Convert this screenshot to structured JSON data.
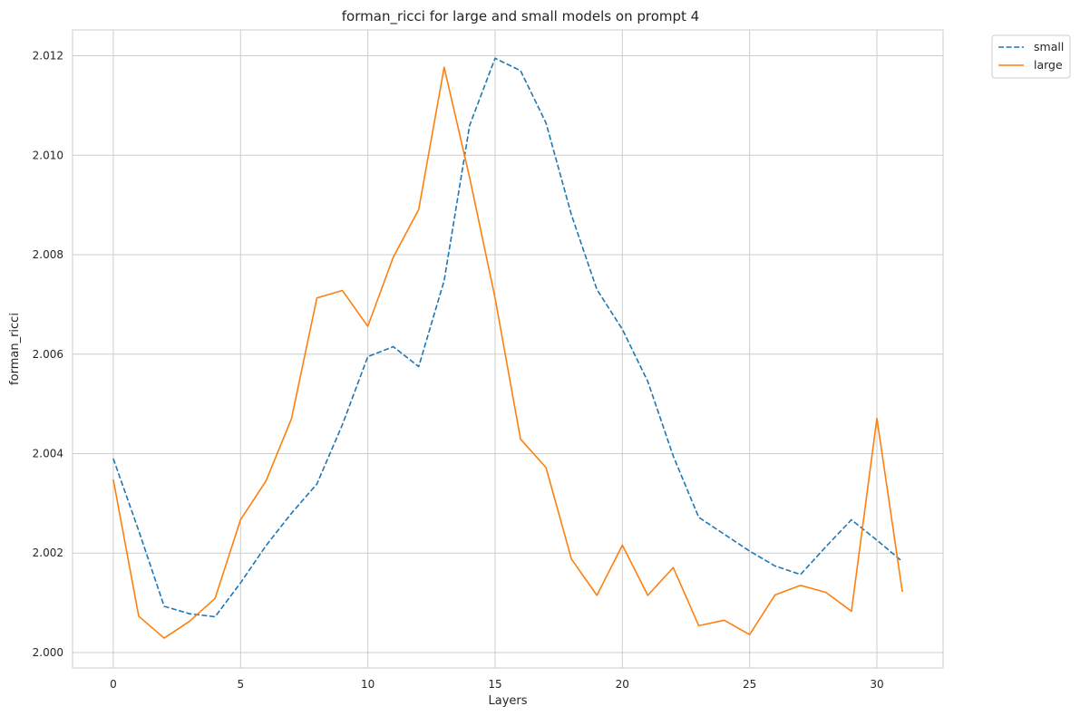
{
  "chart_data": {
    "type": "line",
    "title": "forman_ricci for large and small models on prompt 4",
    "xlabel": "Layers",
    "ylabel": "forman_ricci",
    "xlim": [
      -1.6,
      32.6
    ],
    "ylim": [
      1.99969,
      2.01252
    ],
    "xticks": [
      0,
      5,
      10,
      15,
      20,
      25,
      30
    ],
    "yticks": [
      2.0,
      2.002,
      2.004,
      2.006,
      2.008,
      2.01,
      2.012
    ],
    "ytick_labels": [
      "2.000",
      "2.002",
      "2.004",
      "2.006",
      "2.008",
      "2.010",
      "2.012"
    ],
    "grid": true,
    "legend": {
      "placement": "outside-top-right"
    },
    "x": [
      0,
      1,
      2,
      3,
      4,
      5,
      6,
      7,
      8,
      9,
      10,
      11,
      12,
      13,
      14,
      15,
      16,
      17,
      18,
      19,
      20,
      21,
      22,
      23,
      24,
      25,
      26,
      27,
      28,
      29,
      30,
      31
    ],
    "series": [
      {
        "name": "small",
        "color": "#1f77b4",
        "style": "dashed",
        "values": [
          2.0039,
          2.00245,
          2.00093,
          2.00078,
          2.00072,
          2.0014,
          2.00215,
          2.0028,
          2.00339,
          2.00458,
          2.00595,
          2.00615,
          2.00575,
          2.00748,
          2.0106,
          2.01195,
          2.0117,
          2.01065,
          2.0088,
          2.0073,
          2.0065,
          2.00545,
          2.00395,
          2.00272,
          2.00238,
          2.00204,
          2.00174,
          2.00157,
          2.00213,
          2.00267,
          2.00226,
          2.00183
        ]
      },
      {
        "name": "large",
        "color": "#ff7f0e",
        "style": "solid",
        "values": [
          2.00348,
          2.00073,
          2.00029,
          2.00063,
          2.00109,
          2.00267,
          2.00345,
          2.0047,
          2.00713,
          2.00728,
          2.00656,
          2.00795,
          2.00891,
          2.01177,
          2.00955,
          2.00713,
          2.00429,
          2.00372,
          2.00188,
          2.00115,
          2.00216,
          2.00115,
          2.00171,
          2.00054,
          2.00065,
          2.00036,
          2.00116,
          2.00135,
          2.00121,
          2.00083,
          2.00471,
          2.00122
        ]
      }
    ]
  }
}
